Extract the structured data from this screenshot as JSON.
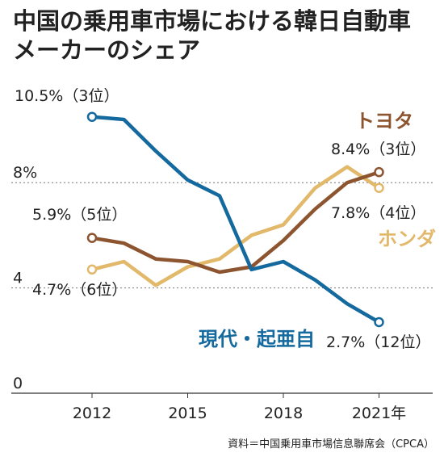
{
  "chart_data": {
    "type": "line",
    "title_lines": [
      "中国の乗用車市場における韓日自動車",
      "メーカーのシェア"
    ],
    "x": [
      2012,
      2013,
      2014,
      2015,
      2016,
      2017,
      2018,
      2019,
      2020,
      2021
    ],
    "x_ticks": [
      "2012",
      "2015",
      "2018",
      "2021年"
    ],
    "x_tick_values": [
      2012,
      2015,
      2018,
      2021
    ],
    "y_ticks": [
      "0",
      "4",
      "8%"
    ],
    "y_tick_values": [
      0,
      4,
      8
    ],
    "ylim": [
      0,
      11
    ],
    "series": [
      {
        "name": "現代・起亜自",
        "color": "#14699e",
        "values": [
          10.5,
          10.4,
          9.2,
          8.1,
          7.5,
          4.7,
          5.0,
          4.3,
          3.4,
          2.7
        ]
      },
      {
        "name": "トヨタ",
        "color": "#8c5530",
        "values": [
          5.9,
          5.7,
          5.1,
          5.0,
          4.6,
          4.8,
          5.8,
          7.0,
          8.0,
          8.4
        ]
      },
      {
        "name": "ホンダ",
        "color": "#e2b86a",
        "values": [
          4.7,
          5.0,
          4.1,
          4.8,
          5.1,
          6.0,
          6.4,
          7.8,
          8.6,
          7.8
        ]
      }
    ],
    "annotations": {
      "hyundai_start": "10.5%（3位）",
      "toyota_start": "5.9%（5位）",
      "honda_start": "4.7%（6位）",
      "toyota_end": "8.4%（3位）",
      "honda_end": "7.8%（4位）",
      "hyundai_end": "2.7%（12位）"
    },
    "source": "資料＝中国乗用車市場信息聯席会（CPCA）"
  }
}
